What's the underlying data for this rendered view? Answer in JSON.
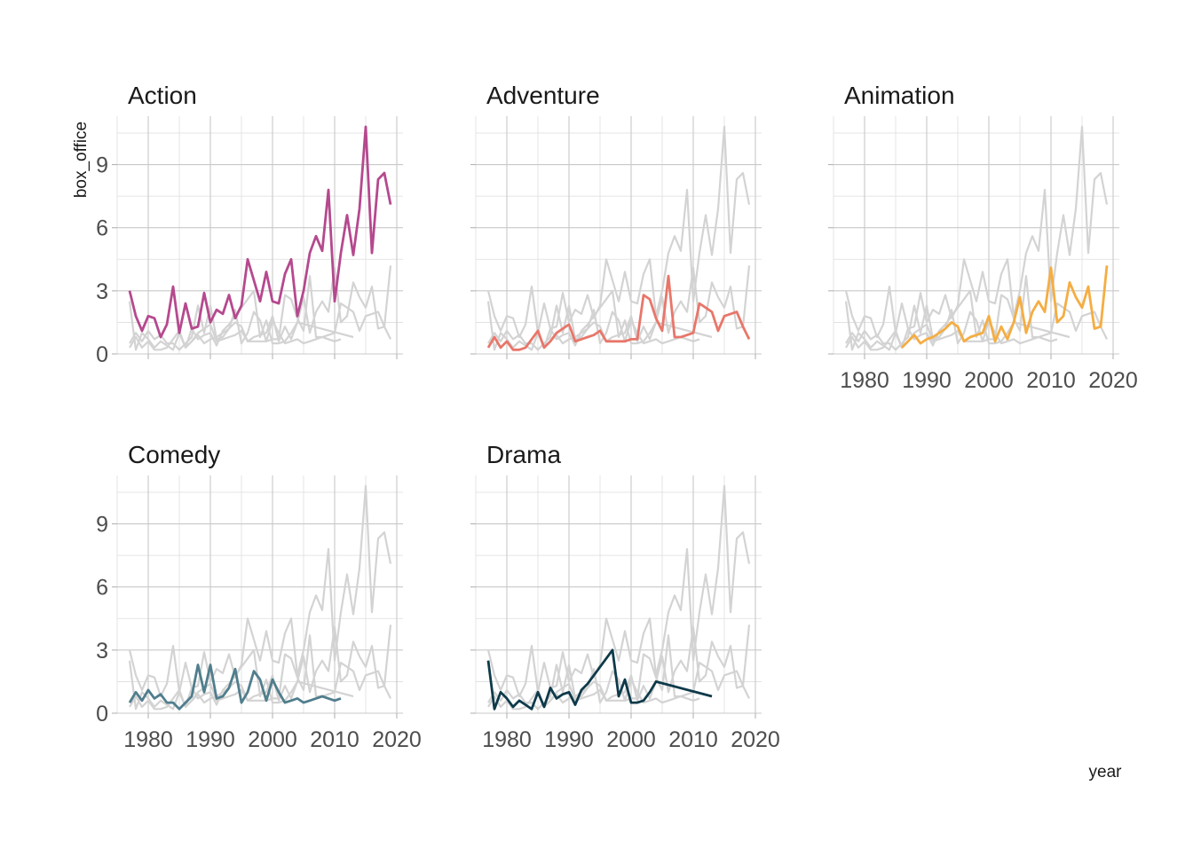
{
  "chart_data": {
    "type": "line",
    "facet_by": "genre",
    "xlabel": "year",
    "ylabel": "box_office",
    "xlim": [
      1975,
      2021
    ],
    "ylim": [
      0,
      11.3
    ],
    "x_ticks": [
      1980,
      1990,
      2000,
      2010,
      2020
    ],
    "y_ticks": [
      0,
      3,
      6,
      9
    ],
    "grid": true,
    "series": [
      {
        "name": "Action",
        "color": "#b5498e",
        "x": [
          1977,
          1978,
          1979,
          1980,
          1981,
          1982,
          1983,
          1984,
          1985,
          1986,
          1987,
          1988,
          1989,
          1990,
          1991,
          1992,
          1993,
          1994,
          1995,
          1996,
          1997,
          1998,
          1999,
          2000,
          2001,
          2002,
          2003,
          2004,
          2005,
          2006,
          2007,
          2008,
          2009,
          2010,
          2011,
          2012,
          2013,
          2014,
          2015,
          2016,
          2017,
          2018,
          2019
        ],
        "y": [
          3.0,
          1.8,
          1.1,
          1.8,
          1.7,
          0.8,
          1.4,
          3.2,
          1.0,
          2.4,
          1.2,
          1.3,
          2.9,
          1.5,
          2.1,
          1.9,
          2.8,
          1.7,
          2.3,
          4.5,
          3.5,
          2.5,
          3.9,
          2.5,
          2.4,
          3.8,
          4.5,
          1.8,
          3.0,
          4.8,
          5.6,
          4.9,
          7.8,
          2.5,
          4.8,
          6.6,
          4.7,
          6.9,
          10.8,
          4.8,
          8.3,
          8.6,
          7.1
        ]
      },
      {
        "name": "Adventure",
        "color": "#e8766a",
        "x": [
          1977,
          1978,
          1979,
          1980,
          1981,
          1982,
          1983,
          1984,
          1985,
          1986,
          1987,
          1988,
          1989,
          1990,
          1991,
          1992,
          1993,
          1994,
          1995,
          1996,
          1997,
          1998,
          1999,
          2000,
          2001,
          2002,
          2003,
          2004,
          2005,
          2006,
          2007,
          2008,
          2009,
          2010,
          2011,
          2012,
          2013,
          2014,
          2015,
          2016,
          2017,
          2018,
          2019
        ],
        "y": [
          0.3,
          0.8,
          0.3,
          0.6,
          0.2,
          0.2,
          0.3,
          0.7,
          1.1,
          0.3,
          0.6,
          1.0,
          1.2,
          1.4,
          0.6,
          0.7,
          0.8,
          0.9,
          1.1,
          0.6,
          0.6,
          0.6,
          0.6,
          0.7,
          0.7,
          2.8,
          2.6,
          1.7,
          1.1,
          3.7,
          0.8,
          0.8,
          0.9,
          1.0,
          2.4,
          2.2,
          2.0,
          1.1,
          1.8,
          1.9,
          2.0,
          1.3,
          0.7
        ]
      },
      {
        "name": "Animation",
        "color": "#f5ad42",
        "x": [
          1986,
          1987,
          1988,
          1989,
          1990,
          1991,
          1992,
          1993,
          1994,
          1995,
          1996,
          1997,
          1998,
          1999,
          2000,
          2001,
          2002,
          2003,
          2004,
          2005,
          2006,
          2007,
          2008,
          2009,
          2010,
          2011,
          2012,
          2013,
          2014,
          2015,
          2016,
          2017,
          2018,
          2019
        ],
        "y": [
          0.3,
          0.6,
          0.9,
          0.5,
          0.7,
          0.8,
          1.0,
          1.2,
          1.5,
          1.3,
          0.6,
          0.8,
          0.9,
          1.0,
          1.8,
          0.6,
          1.3,
          0.7,
          1.5,
          2.7,
          1.0,
          2.0,
          2.5,
          2.0,
          4.1,
          1.5,
          1.8,
          3.4,
          2.7,
          2.2,
          3.2,
          1.2,
          1.3,
          4.2
        ]
      },
      {
        "name": "Comedy",
        "color": "#507e8d",
        "x": [
          1977,
          1978,
          1979,
          1980,
          1981,
          1982,
          1983,
          1984,
          1985,
          1986,
          1987,
          1988,
          1989,
          1990,
          1991,
          1992,
          1993,
          1994,
          1995,
          1996,
          1997,
          1998,
          1999,
          2000,
          2001,
          2002,
          2003,
          2004,
          2005,
          2006,
          2007,
          2008,
          2009,
          2010,
          2011
        ],
        "y": [
          0.5,
          1.0,
          0.6,
          1.1,
          0.7,
          0.9,
          0.5,
          0.5,
          0.2,
          0.5,
          0.8,
          2.3,
          1.0,
          2.3,
          0.7,
          0.8,
          1.2,
          2.1,
          0.5,
          1.0,
          2.0,
          1.6,
          0.6,
          1.6,
          1.0,
          0.5,
          0.6,
          0.7,
          0.5,
          0.6,
          0.7,
          0.8,
          0.7,
          0.6,
          0.7
        ]
      },
      {
        "name": "Drama",
        "color": "#0e3a4a",
        "x": [
          1977,
          1978,
          1979,
          1980,
          1981,
          1982,
          1983,
          1984,
          1985,
          1986,
          1987,
          1988,
          1989,
          1990,
          1991,
          1992,
          1993,
          1994,
          1995,
          1996,
          1997,
          1998,
          1999,
          2000,
          2001,
          2002,
          2003,
          2004,
          2013
        ],
        "y": [
          2.5,
          0.2,
          1.0,
          0.7,
          0.3,
          0.6,
          0.4,
          0.2,
          1.0,
          0.3,
          1.2,
          0.7,
          0.9,
          1.0,
          0.4,
          1.1,
          1.4,
          1.8,
          2.2,
          2.6,
          3.0,
          0.8,
          1.6,
          0.5,
          0.5,
          0.6,
          1.0,
          1.5,
          0.8
        ]
      }
    ]
  },
  "labels": {
    "xlabel": "year",
    "ylabel": "box_office"
  }
}
